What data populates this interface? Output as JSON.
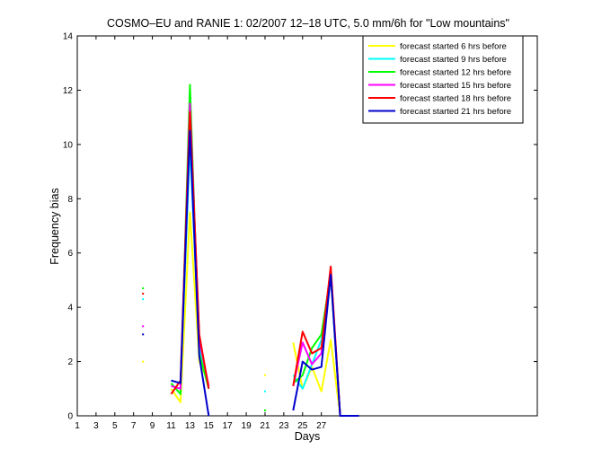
{
  "chart_data": {
    "type": "line",
    "title": "COSMO–EU and RANIE 1: 02/2007 12–18 UTC, 5.0 mm/6h for \"Low mountains\"",
    "xlabel": "Days",
    "ylabel": "Frequency bias",
    "xlim": [
      1,
      50
    ],
    "ylim": [
      0,
      14
    ],
    "xticks": [
      1,
      3,
      5,
      7,
      9,
      11,
      13,
      15,
      17,
      19,
      21,
      23,
      25,
      27
    ],
    "yticks": [
      0,
      2,
      4,
      6,
      8,
      10,
      12,
      14
    ],
    "legend_position": "top-right",
    "grid": false,
    "x": [
      8,
      11,
      12,
      13,
      14,
      15,
      21,
      24,
      25,
      26,
      27,
      28,
      29,
      30,
      31
    ],
    "series": [
      {
        "name": "forecast started 6 hrs before",
        "color": "#ffff00",
        "values": [
          2.0,
          1.0,
          0.5,
          7.5,
          2.0,
          1.2,
          1.5,
          2.7,
          1.0,
          1.8,
          0.9,
          2.8,
          0,
          0,
          0
        ]
      },
      {
        "name": "forecast started 9 hrs before",
        "color": "#00ffff",
        "values": [
          4.3,
          1.3,
          1.2,
          10.0,
          2.5,
          1.0,
          0.9,
          1.5,
          1.0,
          1.9,
          2.8,
          5.3,
          0,
          0,
          0
        ]
      },
      {
        "name": "forecast started 12 hrs before",
        "color": "#00ff00",
        "values": [
          4.7,
          1.2,
          0.8,
          12.2,
          2.3,
          1.0,
          0.2,
          1.2,
          1.5,
          2.5,
          3.0,
          5.2,
          0,
          0,
          0
        ]
      },
      {
        "name": "forecast started 15 hrs before",
        "color": "#ff00ff",
        "values": [
          3.3,
          1.1,
          1.0,
          11.5,
          2.8,
          1.1,
          null,
          1.1,
          2.7,
          1.9,
          2.3,
          5.4,
          0,
          0,
          0
        ]
      },
      {
        "name": "forecast started 18 hrs before",
        "color": "#ff0000",
        "values": [
          4.5,
          0.8,
          1.3,
          11.2,
          3.0,
          1.0,
          null,
          1.1,
          3.1,
          2.3,
          2.5,
          5.5,
          0,
          0,
          0
        ]
      },
      {
        "name": "forecast started 21 hrs before",
        "color": "#0000cc",
        "values": [
          3.0,
          1.3,
          1.2,
          10.5,
          2.2,
          0,
          null,
          0.2,
          2.0,
          1.7,
          1.8,
          5.2,
          0,
          0,
          0
        ]
      }
    ]
  }
}
